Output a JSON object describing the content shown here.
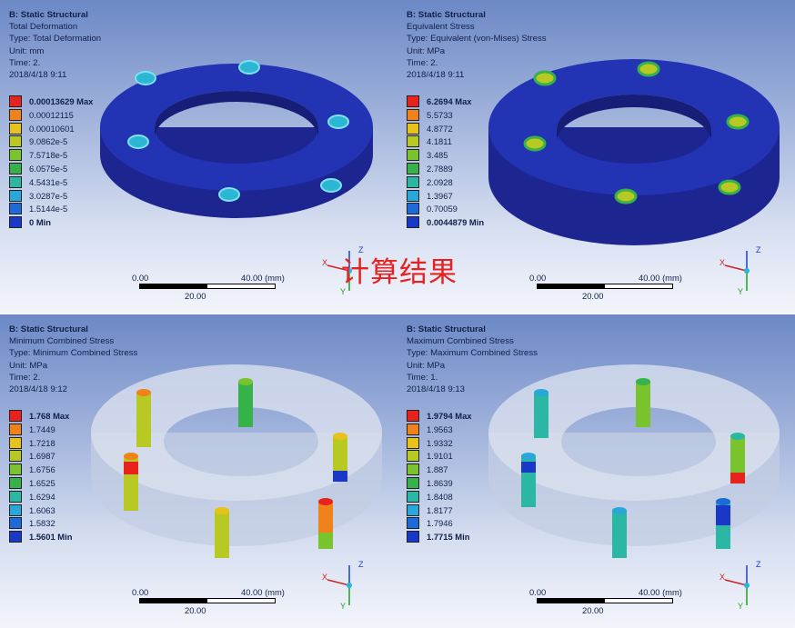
{
  "watermark": "计算结果",
  "panels": [
    {
      "header": [
        "B: Static Structural",
        "Total Deformation",
        "Type: Total Deformation",
        "Unit: mm",
        "Time: 2.",
        "2018/4/18 9:11"
      ],
      "legend": [
        "0.00013629 Max",
        "0.00012115",
        "0.00010601",
        "9.0862e-5",
        "7.5718e-5",
        "6.0575e-5",
        "4.5431e-5",
        "3.0287e-5",
        "1.5144e-5",
        "0 Min"
      ],
      "scale": {
        "start": "0.00",
        "end": "40.00 (mm)",
        "mid": "20.00"
      }
    },
    {
      "header": [
        "B: Static Structural",
        "Equivalent Stress",
        "Type: Equivalent (von-Mises) Stress",
        "Unit: MPa",
        "Time: 2.",
        "2018/4/18 9:11"
      ],
      "legend": [
        "6.2694 Max",
        "5.5733",
        "4.8772",
        "4.1811",
        "3.485",
        "2.7889",
        "2.0928",
        "1.3967",
        "0.70059",
        "0.0044879 Min"
      ],
      "scale": {
        "start": "0.00",
        "end": "40.00 (mm)",
        "mid": "20.00"
      }
    },
    {
      "header": [
        "B: Static Structural",
        "Minimum Combined Stress",
        "Type: Minimum Combined Stress",
        "Unit: MPa",
        "Time: 2.",
        "2018/4/18 9:12"
      ],
      "legend": [
        "1.768 Max",
        "1.7449",
        "1.7218",
        "1.6987",
        "1.6756",
        "1.6525",
        "1.6294",
        "1.6063",
        "1.5832",
        "1.5601 Min"
      ],
      "scale": {
        "start": "0.00",
        "end": "40.00 (mm)",
        "mid": "20.00"
      }
    },
    {
      "header": [
        "B: Static Structural",
        "Maximum Combined Stress",
        "Type: Maximum Combined Stress",
        "Unit: MPa",
        "Time: 1.",
        "2018/4/18 9:13"
      ],
      "legend": [
        "1.9794 Max",
        "1.9563",
        "1.9332",
        "1.9101",
        "1.887",
        "1.8639",
        "1.8408",
        "1.8177",
        "1.7946",
        "1.7715 Min"
      ],
      "scale": {
        "start": "0.00",
        "end": "40.00 (mm)",
        "mid": "20.00"
      }
    }
  ],
  "triad": {
    "x": "X",
    "y": "Y",
    "z": "Z"
  },
  "legend_colors": [
    "#e8231e",
    "#f0821c",
    "#e6c21a",
    "#b9c924",
    "#79c32c",
    "#37b24a",
    "#2bb7a4",
    "#28a7d8",
    "#1d6ad8",
    "#1838c8"
  ]
}
